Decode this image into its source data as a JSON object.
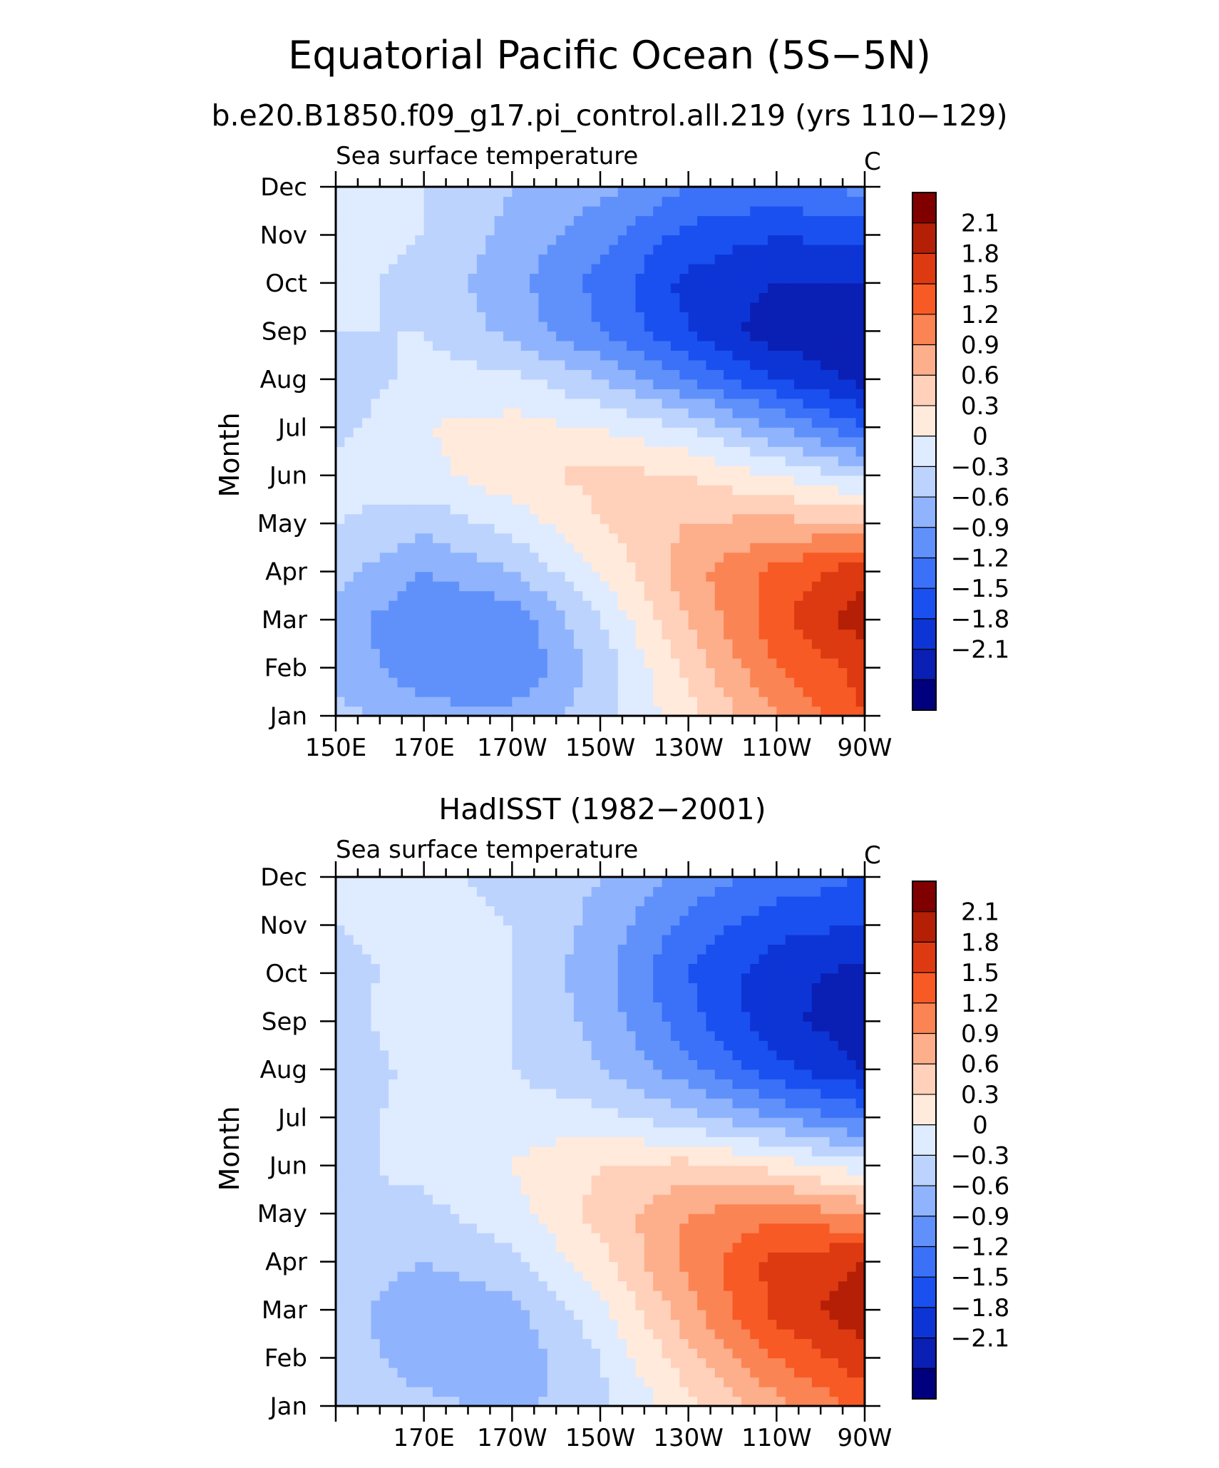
{
  "figure": {
    "title": "Equatorial Pacific Ocean (5S−5N)"
  },
  "chart_data": [
    {
      "type": "heatmap",
      "title": "b.e20.B1850.f09_g17.pi_control.all.219 (yrs 110−129)",
      "subtitle_left": "Sea surface temperature",
      "units": "C",
      "ylabel": "Month",
      "x_tick_labels": [
        "150E",
        "170E",
        "170W",
        "150W",
        "130W",
        "110W",
        "90W"
      ],
      "x_range": [
        150,
        270
      ],
      "y_tick_labels": [
        "Jan",
        "Feb",
        "Mar",
        "Apr",
        "May",
        "Jun",
        "Jul",
        "Aug",
        "Sep",
        "Oct",
        "Nov",
        "Dec"
      ],
      "colorbar_labels": [
        "2.1",
        "1.8",
        "1.5",
        "1.2",
        "0.9",
        "0.6",
        "0.3",
        "0",
        "−0.3",
        "−0.6",
        "−0.9",
        "−1.2",
        "−1.5",
        "−1.8",
        "−2.1"
      ],
      "longitudes": [
        150,
        170,
        190,
        210,
        230,
        250,
        270
      ],
      "values": [
        [
          -0.2,
          -0.5,
          -0.5,
          -0.1,
          0.5,
          1.2,
          1.8
        ],
        [
          -0.4,
          -0.8,
          -0.9,
          -0.2,
          0.7,
          1.5,
          1.9
        ],
        [
          -0.4,
          -0.9,
          -0.8,
          0.0,
          0.9,
          1.7,
          2.3
        ],
        [
          -0.2,
          -0.6,
          -0.3,
          0.3,
          1.1,
          1.6,
          2.0
        ],
        [
          0.0,
          -0.2,
          0.1,
          0.6,
          0.9,
          1.0,
          0.9
        ],
        [
          0.1,
          0.2,
          0.5,
          0.7,
          0.6,
          0.3,
          -0.1
        ],
        [
          -0.1,
          0.3,
          0.4,
          0.3,
          0.0,
          -0.6,
          -1.2
        ],
        [
          -0.2,
          0.1,
          0.1,
          -0.3,
          -0.9,
          -1.5,
          -1.9
        ],
        [
          0.0,
          0.0,
          -0.4,
          -0.9,
          -1.5,
          -2.0,
          -2.0
        ],
        [
          0.1,
          -0.1,
          -0.5,
          -1.0,
          -1.6,
          -1.8,
          -1.8
        ],
        [
          0.1,
          0.0,
          -0.4,
          -0.8,
          -1.3,
          -1.5,
          -1.4
        ],
        [
          0.0,
          0.0,
          -0.3,
          -0.5,
          -0.9,
          -1.0,
          -0.8
        ]
      ]
    },
    {
      "type": "heatmap",
      "title": "HadISST (1982−2001)",
      "subtitle_left": "Sea surface temperature",
      "units": "C",
      "ylabel": "Month",
      "x_tick_labels": [
        "170E",
        "170W",
        "150W",
        "130W",
        "110W",
        "90W"
      ],
      "x_range": [
        150,
        270
      ],
      "y_tick_labels": [
        "Jan",
        "Feb",
        "Mar",
        "Apr",
        "May",
        "Jun",
        "Jul",
        "Aug",
        "Sep",
        "Oct",
        "Nov",
        "Dec"
      ],
      "colorbar_labels": [
        "2.1",
        "1.8",
        "1.5",
        "1.2",
        "0.9",
        "0.6",
        "0.3",
        "0",
        "−0.3",
        "−0.6",
        "−0.9",
        "−1.2",
        "−1.5",
        "−1.8",
        "−2.1"
      ],
      "longitudes": [
        150,
        170,
        190,
        210,
        230,
        250,
        270
      ],
      "values": [
        [
          0.0,
          -0.2,
          -0.4,
          -0.1,
          0.5,
          1.1,
          1.6
        ],
        [
          -0.1,
          -0.5,
          -0.5,
          0.0,
          0.8,
          1.5,
          2.0
        ],
        [
          -0.2,
          -0.5,
          -0.4,
          0.2,
          1.1,
          1.9,
          2.3
        ],
        [
          -0.1,
          -0.3,
          -0.1,
          0.5,
          1.3,
          1.9,
          2.1
        ],
        [
          0.0,
          -0.1,
          0.2,
          0.7,
          1.2,
          1.4,
          1.2
        ],
        [
          -0.1,
          0.1,
          0.3,
          0.6,
          0.7,
          0.5,
          0.1
        ],
        [
          -0.1,
          0.1,
          0.2,
          0.1,
          -0.2,
          -0.6,
          -1.0
        ],
        [
          -0.2,
          0.1,
          0.0,
          -0.3,
          -0.8,
          -1.4,
          -1.8
        ],
        [
          -0.2,
          0.3,
          0.0,
          -0.4,
          -1.1,
          -1.7,
          -2.0
        ],
        [
          -0.1,
          0.1,
          0.0,
          -0.5,
          -1.2,
          -1.7,
          -1.9
        ],
        [
          0.0,
          0.1,
          0.0,
          -0.4,
          -1.0,
          -1.4,
          -1.5
        ],
        [
          0.0,
          0.1,
          -0.1,
          -0.3,
          -0.7,
          -1.0,
          -1.2
        ]
      ]
    }
  ]
}
